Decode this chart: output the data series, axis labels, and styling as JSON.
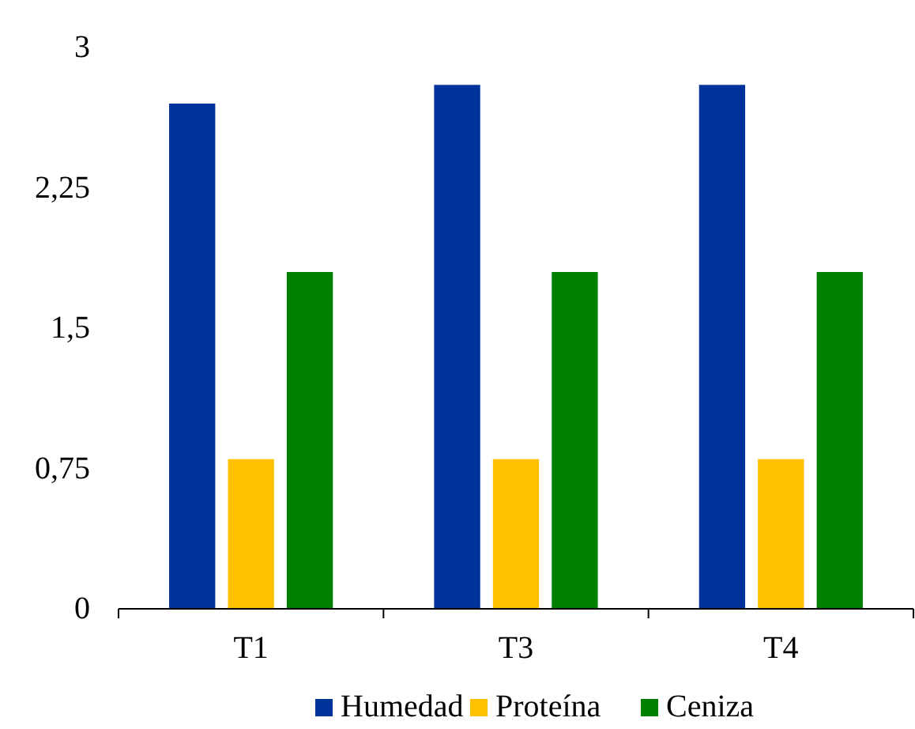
{
  "chart_data": {
    "type": "bar",
    "categories": [
      "T1",
      "T3",
      "T4"
    ],
    "series": [
      {
        "name": "Humedad",
        "color": "#003399",
        "values": [
          2.7,
          2.8,
          2.8
        ]
      },
      {
        "name": "Proteína",
        "color": "#ffc000",
        "values": [
          0.8,
          0.8,
          0.8
        ]
      },
      {
        "name": "Ceniza",
        "color": "#008000",
        "values": [
          1.8,
          1.8,
          1.8
        ]
      }
    ],
    "ylim": [
      0,
      3
    ],
    "yticks": [
      0,
      {
        "value": 0.75,
        "label": "0,75"
      },
      {
        "value": 1.5,
        "label": "1,5"
      },
      {
        "value": 2.25,
        "label": "2,25"
      },
      3
    ],
    "grid": false,
    "legend": "bottom"
  }
}
